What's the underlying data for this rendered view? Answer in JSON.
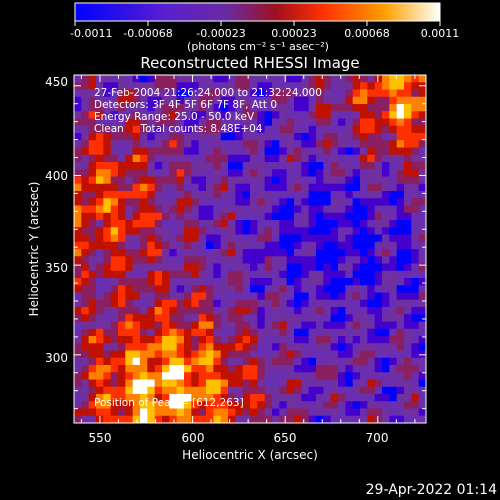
{
  "colorbar": {
    "ticks": [
      "-0.0011",
      "-0.00068",
      "-0.00023",
      "0.00023",
      "0.00068",
      "0.0011"
    ],
    "units": "(photons cm⁻² s⁻¹ asec⁻²)"
  },
  "chart_data": {
    "type": "heatmap",
    "title": "Reconstructed RHESSI Image",
    "xlabel": "Heliocentric X (arcsec)",
    "ylabel": "Heliocentric Y (arcsec)",
    "xlim": [
      536,
      726
    ],
    "ylim": [
      262,
      456
    ],
    "xticks": [
      "550",
      "600",
      "650",
      "700"
    ],
    "yticks": [
      "300",
      "350",
      "400",
      "450"
    ],
    "value_range": [
      -0.0011,
      0.0011
    ],
    "colormap": [
      "#0000ff",
      "#4400cc",
      "#6a2fb0",
      "#7030a0",
      "#8a2060",
      "#c01000",
      "#ff3000",
      "#ff8000",
      "#ffc000",
      "#ffffff"
    ],
    "annotations": [
      "27-Feb-2004 21:26:24.000 to 21:32:24.000",
      "Detectors: 3F 4F 5F 6F 7F 8F, Att 0",
      "Energy Range: 25.0 - 50.0 keV",
      "Clean     Total counts: 8.48E+04"
    ],
    "peak_label": "Position of Peak = [612,263]",
    "peak": [
      612,
      263
    ]
  },
  "timestamp": "29-Apr-2022 01:14"
}
